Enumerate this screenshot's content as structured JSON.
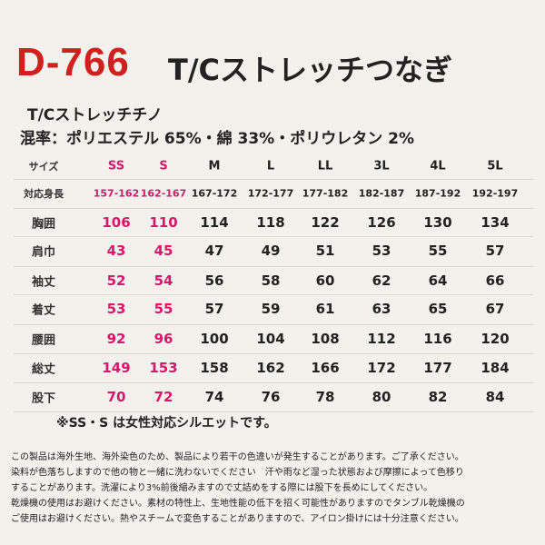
{
  "header": {
    "code": "D-766",
    "title": "T/Cストレッチつなぎ"
  },
  "material": {
    "name": "T/Cストレッチチノ",
    "blend": "混率：ポリエステル 65%・綿 33%・ポリウレタン 2%"
  },
  "table": {
    "header": [
      "サイズ",
      "SS",
      "S",
      "M",
      "L",
      "LL",
      "3L",
      "4L",
      "5L"
    ],
    "rows": [
      [
        "対応身長",
        "157-162",
        "162-167",
        "167-172",
        "172-177",
        "177-182",
        "182-187",
        "187-192",
        "192-197"
      ],
      [
        "胸囲",
        106,
        110,
        114,
        118,
        122,
        126,
        130,
        134
      ],
      [
        "肩巾",
        43,
        45,
        47,
        49,
        51,
        53,
        55,
        57
      ],
      [
        "袖丈",
        52,
        54,
        56,
        58,
        60,
        62,
        64,
        66
      ],
      [
        "着丈",
        53,
        55,
        57,
        59,
        61,
        63,
        65,
        67
      ],
      [
        "腰囲",
        92,
        96,
        100,
        104,
        108,
        112,
        116,
        120
      ],
      [
        "総丈",
        149,
        153,
        158,
        162,
        166,
        172,
        177,
        184
      ],
      [
        "股下",
        70,
        72,
        74,
        76,
        78,
        80,
        82,
        84
      ]
    ]
  },
  "note": "※SS・S は女性対応シルエットです。",
  "notices": [
    "この製品は海外生地、海外染色のため、製品により若干の色違いが発生することがあります。ご了承ください。",
    "染料が色落ちしますので他の物と一緒に洗わないでください　汗や雨など湿った状態および摩擦によって色移り",
    "することがあります。洗濯により3%前後縮みますので丈詰めをする際には股下を長めにしてください。",
    "乾燥機の使用はお避けください。素材の特性上、生地性能の低下を招く可能性がありますのでタンブル乾燥機の",
    "ご使用はお避けください。熱やスチームで変色することがありますので、アイロン掛けには十分注意ください。"
  ]
}
